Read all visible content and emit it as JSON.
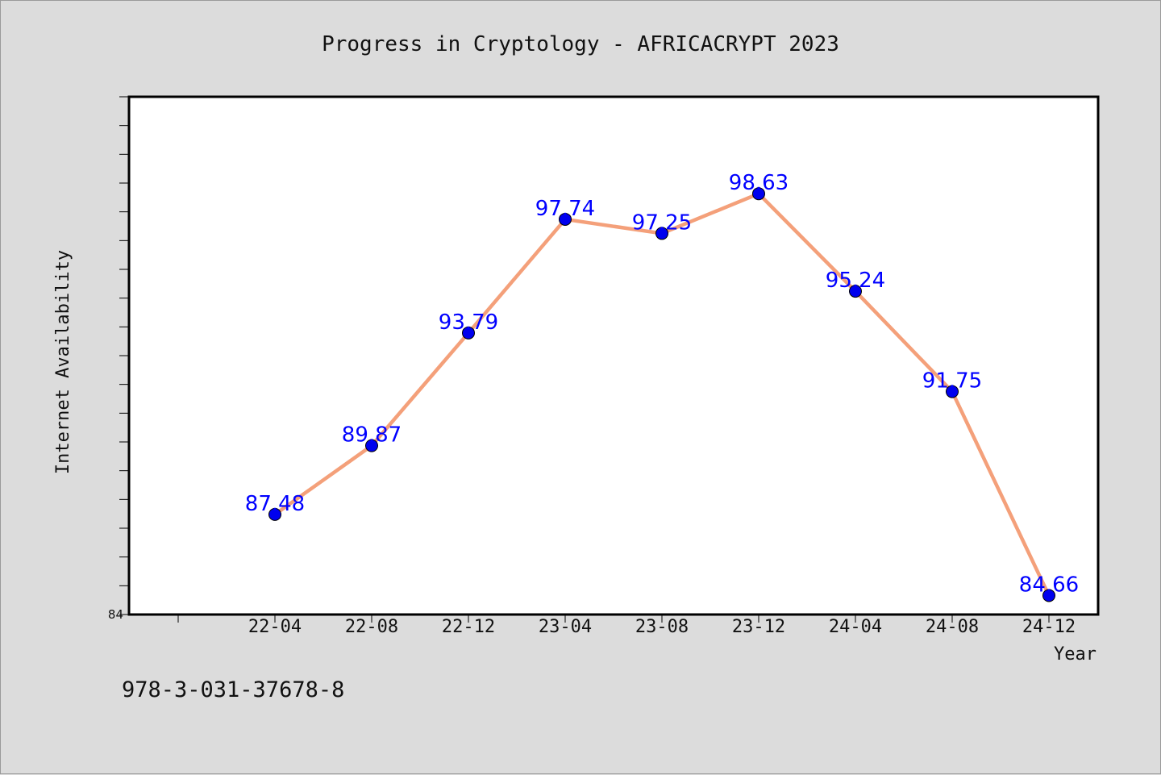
{
  "chart_data": {
    "type": "line",
    "title": "Progress in Cryptology - AFRICACRYPT 2023",
    "xlabel": "Year",
    "ylabel": "Internet Availability",
    "categories": [
      "22-04",
      "22-08",
      "22-12",
      "23-04",
      "23-08",
      "23-12",
      "24-04",
      "24-08",
      "24-12"
    ],
    "series": [
      {
        "values": [
          87.48,
          89.87,
          93.79,
          97.74,
          97.25,
          98.63,
          95.24,
          91.75,
          84.66
        ],
        "line_color": "#f4a07a",
        "marker_color": "#0000ee"
      }
    ],
    "data_labels": [
      "87.48",
      "89.87",
      "93.79",
      "97.74",
      "97.25",
      "98.63",
      "95.24",
      "91.75",
      "84.66"
    ],
    "ylim": [
      84,
      102
    ],
    "y_tick_labels": [
      "84"
    ],
    "grid": false,
    "legend": "none",
    "annotation": "978-3-031-37678-8"
  }
}
